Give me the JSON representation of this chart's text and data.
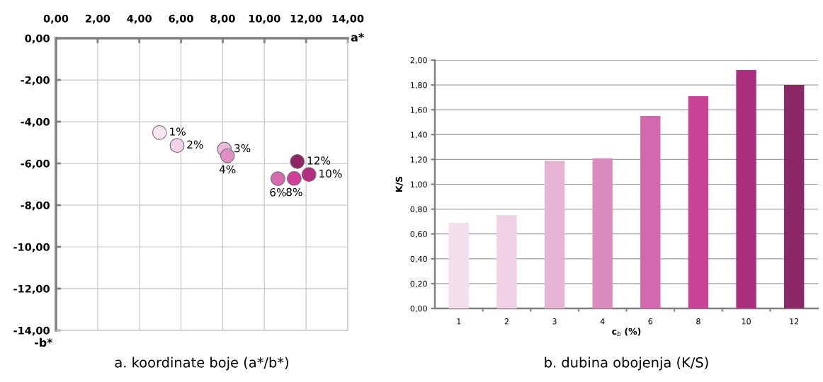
{
  "chart_data": [
    {
      "type": "scatter",
      "title": "a. koordinate boje (a*/b*)",
      "xlabel": "a*",
      "ylabel": "-b*",
      "x": [
        4.97,
        5.81,
        8.08,
        8.23,
        10.65,
        11.43,
        12.14,
        11.58
      ],
      "values": [
        -4.52,
        -5.14,
        -5.32,
        -5.63,
        -6.73,
        -6.72,
        -6.53,
        -5.91
      ],
      "colors": [
        "#f7e6f1",
        "#f2d3e7",
        "#eabbd8",
        "#df8fc3",
        "#d76aaf",
        "#d0409a",
        "#b0307f",
        "#8c2565"
      ],
      "annotations": [
        {
          "text": "1%",
          "x": 4.97,
          "y": -4.52
        },
        {
          "text": "2%",
          "x": 5.81,
          "y": -5.14
        },
        {
          "text": "3%",
          "x": 8.08,
          "y": -5.32
        },
        {
          "text": "4%",
          "x": 8.23,
          "y": -5.63
        },
        {
          "text": "6%",
          "x": 10.65,
          "y": -6.73
        },
        {
          "text": "8%",
          "x": 11.43,
          "y": -6.72
        },
        {
          "text": "10%",
          "x": 12.14,
          "y": -6.53
        },
        {
          "text": "12%",
          "x": 11.58,
          "y": -5.91
        }
      ],
      "xlim": [
        0,
        14
      ],
      "ylim": [
        -14,
        0
      ],
      "xticks": [
        {
          "value": 0,
          "label": "0,00"
        },
        {
          "value": 2,
          "label": "2,00"
        },
        {
          "value": 4,
          "label": "4,00"
        },
        {
          "value": 6,
          "label": "6,00"
        },
        {
          "value": 8,
          "label": "8,00"
        },
        {
          "value": 10,
          "label": "10,00"
        },
        {
          "value": 12,
          "label": "12,00"
        },
        {
          "value": 14,
          "label": "14,00"
        }
      ],
      "yticks": [
        {
          "value": -14,
          "label": "-14,00"
        },
        {
          "value": -12,
          "label": "-12,00"
        },
        {
          "value": -10,
          "label": "-10,00"
        },
        {
          "value": -8,
          "label": "-8,00"
        },
        {
          "value": -6,
          "label": "-6,00"
        },
        {
          "value": -4,
          "label": "-4,00"
        },
        {
          "value": -2,
          "label": "-2,00"
        },
        {
          "value": 0,
          "label": "0,00"
        }
      ],
      "grid": true,
      "marker": "circle"
    },
    {
      "type": "bar",
      "title": "b. dubina obojenja (K/S)",
      "xlabel": "c$_{b}$ (%)",
      "ylabel": "K/S",
      "categories": [
        "1",
        "2",
        "3",
        "4",
        "6",
        "8",
        "10",
        "12"
      ],
      "values": [
        0.69,
        0.75,
        1.19,
        1.21,
        1.55,
        1.71,
        1.92,
        1.8
      ],
      "colors": [
        "#f3dfec",
        "#efd0e5",
        "#e8b4d4",
        "#dc8bbf",
        "#d468ae",
        "#c94496",
        "#ab2f7e",
        "#8b2865"
      ],
      "ylim": [
        0,
        2
      ],
      "yticks": [
        {
          "value": 0,
          "label": "0,00"
        },
        {
          "value": 0.2,
          "label": "0,20"
        },
        {
          "value": 0.4,
          "label": "0,40"
        },
        {
          "value": 0.6,
          "label": "0,60"
        },
        {
          "value": 0.8,
          "label": "0,80"
        },
        {
          "value": 1.0,
          "label": "1,00"
        },
        {
          "value": 1.2,
          "label": "1,20"
        },
        {
          "value": 1.4,
          "label": "1,40"
        },
        {
          "value": 1.6,
          "label": "1,60"
        },
        {
          "value": 1.8,
          "label": "1,80"
        },
        {
          "value": 2.0,
          "label": "2,00"
        }
      ],
      "grid": "y"
    }
  ]
}
